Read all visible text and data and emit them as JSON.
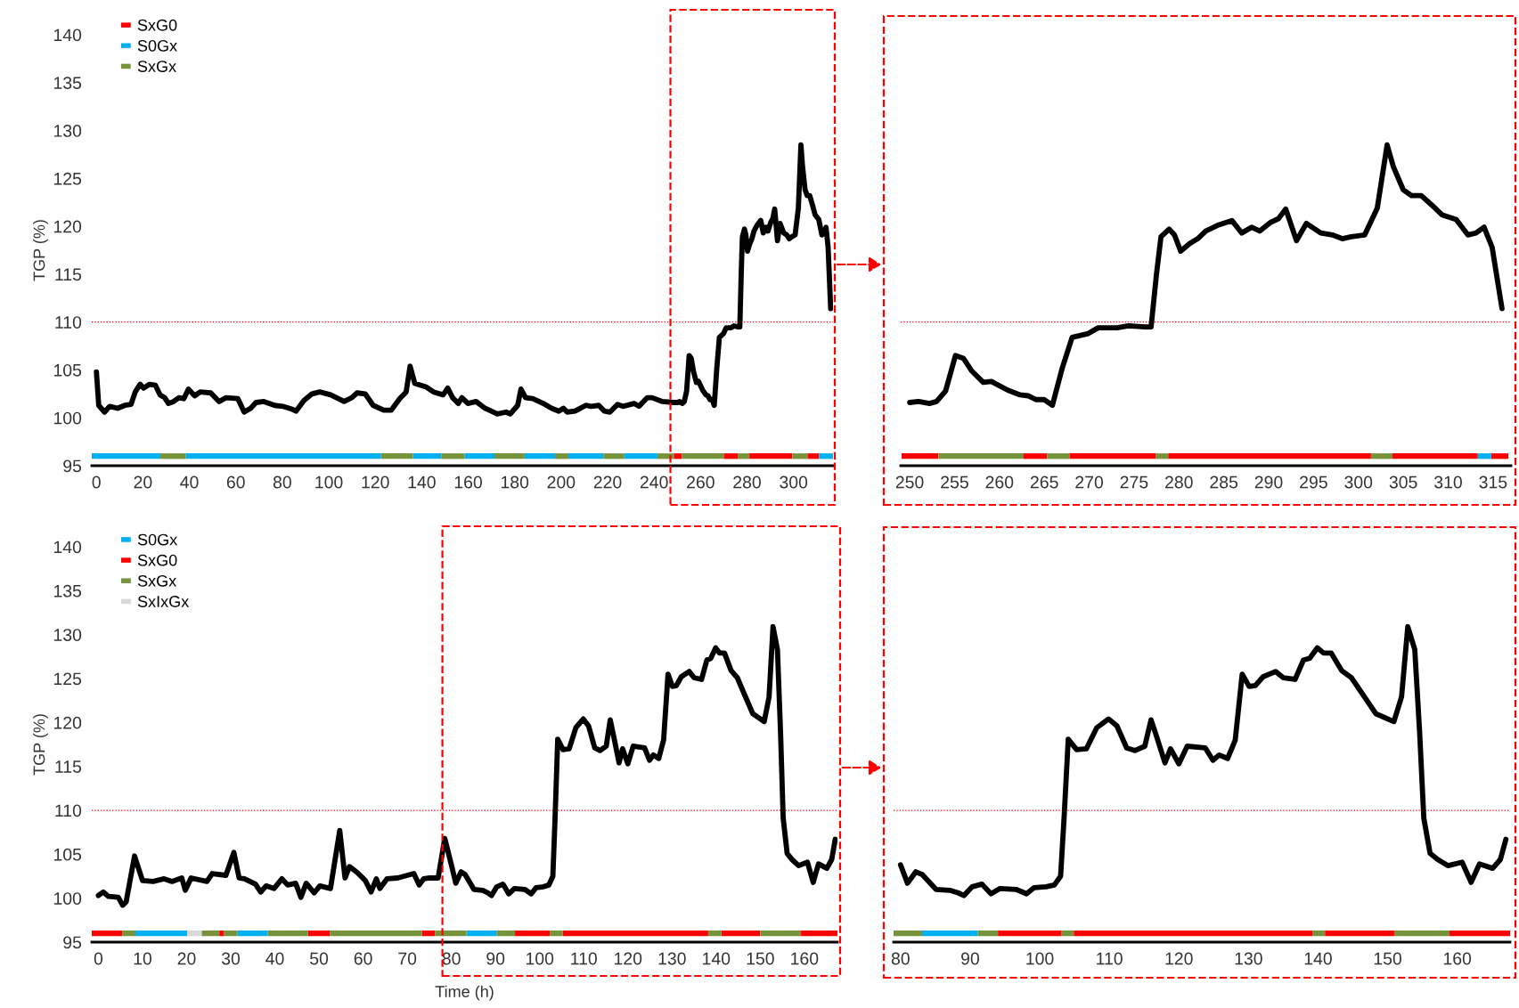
{
  "chart_data": [
    {
      "type": "line",
      "ylabel": "TGP (%)",
      "xlim": [
        -2,
        317
      ],
      "xticks": [
        0,
        20,
        40,
        60,
        80,
        100,
        120,
        140,
        160,
        180,
        200,
        220,
        240,
        260,
        280,
        300
      ],
      "ylim": [
        95,
        140
      ],
      "yticks": [
        95,
        100,
        105,
        110,
        115,
        120,
        125,
        130,
        135,
        140
      ],
      "legend": "top left",
      "ref_lines": [
        {
          "axis": "y",
          "value": 110,
          "color": "#ff0000",
          "line_style": "dotted"
        }
      ],
      "series": [
        {
          "name": "SxG0",
          "color": "#ff0000",
          "x": [
            248.5,
            252
          ],
          "values": [
            96,
            96
          ]
        },
        {
          "color": "#ff0000",
          "x": [
            270,
            276
          ],
          "values": [
            96,
            96
          ]
        },
        {
          "color": "#ff0000",
          "x": [
            281,
            299.5
          ],
          "values": [
            96,
            96
          ]
        },
        {
          "color": "#ff0000",
          "x": [
            306,
            311
          ],
          "values": [
            96,
            96
          ]
        },
        {
          "name": "S0Gx",
          "color": "#00b0f0",
          "x": [
            -2,
            27.5
          ],
          "values": [
            96,
            96
          ]
        },
        {
          "color": "#00b0f0",
          "x": [
            38.5,
            122.5
          ],
          "values": [
            96,
            96
          ]
        },
        {
          "color": "#00b0f0",
          "x": [
            136.2,
            148.4
          ],
          "values": [
            96,
            96
          ]
        },
        {
          "color": "#00b0f0",
          "x": [
            158.5,
            171.3
          ],
          "values": [
            96,
            96
          ]
        },
        {
          "color": "#00b0f0",
          "x": [
            184.3,
            197.4
          ],
          "values": [
            96,
            96
          ]
        },
        {
          "color": "#00b0f0",
          "x": [
            203.1,
            218.2
          ],
          "values": [
            96,
            96
          ]
        },
        {
          "color": "#00b0f0",
          "x": [
            227.2,
            241.4
          ],
          "values": [
            96,
            96
          ]
        },
        {
          "color": "#00b0f0",
          "x": [
            311,
            317
          ],
          "values": [
            96,
            96
          ]
        },
        {
          "name": "SxGx",
          "color": "#77933c",
          "x": [
            27.5,
            38.5
          ],
          "values": [
            96,
            96
          ]
        },
        {
          "color": "#77933c",
          "x": [
            122.5,
            136.2
          ],
          "values": [
            96,
            96
          ]
        },
        {
          "color": "#77933c",
          "x": [
            148.4,
            158.5
          ],
          "values": [
            96,
            96
          ]
        },
        {
          "color": "#77933c",
          "x": [
            171.3,
            184.3
          ],
          "values": [
            96,
            96
          ]
        },
        {
          "color": "#77933c",
          "x": [
            197.4,
            203.1
          ],
          "values": [
            96,
            96
          ]
        },
        {
          "color": "#77933c",
          "x": [
            218.2,
            227.2
          ],
          "values": [
            96,
            96
          ]
        },
        {
          "color": "#77933c",
          "x": [
            241.4,
            248.5
          ],
          "values": [
            96,
            96
          ]
        },
        {
          "color": "#77933c",
          "x": [
            252,
            270
          ],
          "values": [
            96,
            96
          ]
        },
        {
          "color": "#77933c",
          "x": [
            276,
            281
          ],
          "values": [
            96,
            96
          ]
        },
        {
          "color": "#77933c",
          "x": [
            299.5,
            306
          ],
          "values": [
            96,
            96
          ]
        },
        {
          "color": "#000000",
          "x": [
            0,
            1,
            3.5,
            5.7,
            9.1,
            12.2,
            14.9,
            16.7,
            18.8,
            20.3,
            22.9,
            25.4,
            27.4,
            29.4,
            31,
            33.2,
            35.5,
            37.6,
            39.6,
            42.3,
            44.7,
            49.2,
            52.8,
            55.8,
            60.9,
            63.6,
            66.4,
            68.7,
            72.1,
            76.7,
            80.2,
            84.2,
            85.9,
            89.3,
            92.8,
            96.1,
            100.8,
            106.6,
            109.9,
            112.2,
            115.7,
            119.1,
            123.7,
            126.9,
            130.5,
            133.3,
            135,
            137,
            142.1,
            145.1,
            149.2,
            151.2,
            153.3,
            155.7,
            157.3,
            159.9,
            163.4,
            167.2,
            169.9,
            172.5,
            176.3,
            178.1,
            181.3,
            182.7,
            184.7,
            187.8,
            192.3,
            195.9,
            199,
            201,
            202.6,
            206,
            210.6,
            212.9,
            216.2,
            218.6,
            221,
            224.3,
            226.6,
            231.4,
            233.5,
            237,
            239.2,
            243.6,
            248.5,
            250,
            251,
            252.2,
            253,
            254,
            255.1,
            256,
            256.9,
            258.2,
            259.1,
            260.9,
            262.3,
            263.2,
            264.1,
            265,
            265.9,
            267,
            268.1,
            269.9,
            271,
            273.1,
            274.4,
            276.2,
            276.9,
            277.5,
            278,
            278.9,
            279.5,
            280.2,
            281.2,
            282.1,
            283,
            284.3,
            285.9,
            287,
            288.1,
            289,
            290.2,
            291.1,
            291.9,
            293.1,
            294.2,
            295.8,
            297.1,
            298.2,
            299.2,
            300.7,
            302.1,
            303.2,
            303.9,
            305,
            305.9,
            307,
            308.2,
            309.3,
            310.9,
            312.2,
            313.1,
            314,
            314.9,
            316
          ],
          "values": [
            104.8,
            101.3,
            100.6,
            101.2,
            101,
            101.3,
            101.4,
            102.7,
            103.5,
            103.1,
            103.5,
            103.4,
            102.4,
            102.1,
            101.5,
            101.7,
            102.1,
            102,
            103,
            102.3,
            102.7,
            102.6,
            101.7,
            102.1,
            102,
            100.6,
            101,
            101.6,
            101.7,
            101.3,
            101.2,
            100.9,
            100.7,
            101.8,
            102.5,
            102.7,
            102.4,
            101.7,
            102.1,
            102.6,
            102.5,
            101.3,
            100.8,
            100.8,
            102,
            102.7,
            105.4,
            103.6,
            103.2,
            102.7,
            102.4,
            103.1,
            102.1,
            101.5,
            102.1,
            101.5,
            101.7,
            101,
            100.7,
            100.4,
            100.6,
            100.4,
            101.3,
            103,
            102.1,
            102,
            101.5,
            101,
            100.7,
            101,
            100.6,
            100.7,
            101.3,
            101.2,
            101.3,
            100.7,
            100.6,
            101.4,
            101.2,
            101.5,
            101.2,
            102.1,
            102.1,
            101.7,
            101.6,
            101.6,
            101.7,
            101.5,
            101.7,
            102.8,
            106.5,
            106.2,
            104.9,
            103.7,
            103.8,
            102.9,
            102.4,
            102.3,
            101.9,
            101.9,
            101.3,
            105.2,
            108.4,
            108.8,
            109.4,
            109.4,
            109.6,
            109.5,
            109.5,
            115,
            118.9,
            119.7,
            119.1,
            117.4,
            118.2,
            118.7,
            119.5,
            120.1,
            120.6,
            119.3,
            119.9,
            119.5,
            120.4,
            120.8,
            121.8,
            118.5,
            120.3,
            119.3,
            119.1,
            118.7,
            118.9,
            119.1,
            121.9,
            128.5,
            126.2,
            123.8,
            123.2,
            123.2,
            122.2,
            121.2,
            120.7,
            119.1,
            119.3,
            119.9,
            117.8,
            111.4
          ]
        }
      ]
    },
    {
      "type": "line",
      "xlim": [
        249,
        317
      ],
      "xticks": [
        250,
        255,
        260,
        265,
        270,
        275,
        280,
        285,
        290,
        295,
        300,
        305,
        310,
        315
      ],
      "ylim": [
        95,
        140
      ],
      "yticks": [
        95,
        100,
        105,
        110,
        115,
        120,
        125,
        130,
        135,
        140
      ],
      "tick_labels": "x",
      "ref_lines": [
        {
          "axis": "y",
          "value": 110,
          "color": "#ff0000",
          "line_style": "dotted"
        }
      ],
      "series": [
        {
          "color": "#ff0000",
          "x": [
            249.1,
            253.2
          ],
          "values": [
            96,
            96
          ]
        },
        {
          "color": "#ff0000",
          "x": [
            262.7,
            265.3
          ],
          "values": [
            96,
            96
          ]
        },
        {
          "color": "#ff0000",
          "x": [
            267.8,
            277.4
          ],
          "values": [
            96,
            96
          ]
        },
        {
          "color": "#ff0000",
          "x": [
            278.8,
            301.4
          ],
          "values": [
            96,
            96
          ]
        },
        {
          "color": "#ff0000",
          "x": [
            303.8,
            313.3
          ],
          "values": [
            96,
            96
          ]
        },
        {
          "color": "#ff0000",
          "x": [
            314.8,
            316.7
          ],
          "values": [
            96,
            96
          ]
        },
        {
          "color": "#77933c",
          "x": [
            253.2,
            262.7
          ],
          "values": [
            96,
            96
          ]
        },
        {
          "color": "#77933c",
          "x": [
            265.3,
            267.8
          ],
          "values": [
            96,
            96
          ]
        },
        {
          "color": "#77933c",
          "x": [
            277.4,
            278.8
          ],
          "values": [
            96,
            96
          ]
        },
        {
          "color": "#77933c",
          "x": [
            301.4,
            303.8
          ],
          "values": [
            96,
            96
          ]
        },
        {
          "color": "#00b0f0",
          "x": [
            313.3,
            314.8
          ],
          "values": [
            96,
            96
          ]
        },
        {
          "color": "#000000",
          "x": [
            250,
            251,
            252.2,
            253,
            254,
            255.1,
            256,
            256.9,
            258.2,
            259.1,
            260.9,
            262.3,
            263.2,
            264.1,
            265,
            265.9,
            267,
            268.1,
            269.9,
            271,
            273.1,
            274.4,
            276.2,
            276.9,
            277.5,
            278,
            278.9,
            279.5,
            280.2,
            281.2,
            282.1,
            283,
            284.3,
            285.9,
            287,
            288.1,
            289,
            290.2,
            291.1,
            291.9,
            293.1,
            294.2,
            295.8,
            297.1,
            298.2,
            299.2,
            300.7,
            302.1,
            303.2,
            303.9,
            305,
            305.9,
            307,
            308.2,
            309.3,
            310.9,
            312.2,
            313.1,
            314,
            314.9,
            316
          ],
          "values": [
            101.6,
            101.7,
            101.5,
            101.7,
            102.8,
            106.5,
            106.2,
            104.9,
            103.7,
            103.8,
            102.9,
            102.4,
            102.3,
            101.9,
            101.9,
            101.3,
            105.2,
            108.4,
            108.8,
            109.4,
            109.4,
            109.6,
            109.5,
            109.5,
            115,
            118.9,
            119.7,
            119.1,
            117.4,
            118.2,
            118.7,
            119.5,
            120.1,
            120.6,
            119.3,
            119.9,
            119.5,
            120.4,
            120.8,
            121.8,
            118.5,
            120.3,
            119.3,
            119.1,
            118.7,
            118.9,
            119.1,
            121.9,
            128.5,
            126.2,
            123.8,
            123.2,
            123.2,
            122.2,
            121.2,
            120.7,
            119.1,
            119.3,
            119.9,
            117.8,
            111.4
          ]
        }
      ]
    },
    {
      "type": "line",
      "ylabel": "TGP (%)",
      "xlabel": "Time (h)",
      "xlim": [
        -1.5,
        167.5
      ],
      "xticks": [
        0,
        10,
        20,
        30,
        40,
        50,
        60,
        70,
        80,
        90,
        100,
        110,
        120,
        130,
        140,
        150,
        160
      ],
      "ylim": [
        95,
        140
      ],
      "yticks": [
        95,
        100,
        105,
        110,
        115,
        120,
        125,
        130,
        135,
        140
      ],
      "legend": "top left",
      "ref_lines": [
        {
          "axis": "y",
          "value": 110,
          "color": "#ff0000",
          "line_style": "dotted"
        }
      ],
      "series": [
        {
          "name": "S0Gx",
          "color": "#00b0f0",
          "x": [
            8.4,
            20.1
          ],
          "values": [
            96,
            96
          ]
        },
        {
          "color": "#00b0f0",
          "x": [
            31.5,
            38.4
          ],
          "values": [
            96,
            96
          ]
        },
        {
          "color": "#00b0f0",
          "x": [
            83.4,
            90.3
          ],
          "values": [
            96,
            96
          ]
        },
        {
          "name": "SxG0",
          "color": "#ff0000",
          "x": [
            -1.5,
            5.4
          ],
          "values": [
            96,
            96
          ]
        },
        {
          "color": "#ff0000",
          "x": [
            27.4,
            28.5
          ],
          "values": [
            96,
            96
          ]
        },
        {
          "color": "#ff0000",
          "x": [
            47.5,
            52.5
          ],
          "values": [
            96,
            96
          ]
        },
        {
          "color": "#ff0000",
          "x": [
            73.3,
            76.3
          ],
          "values": [
            96,
            96
          ]
        },
        {
          "color": "#ff0000",
          "x": [
            94.4,
            102.3
          ],
          "values": [
            96,
            96
          ]
        },
        {
          "color": "#ff0000",
          "x": [
            105.2,
            138.2
          ],
          "values": [
            96,
            96
          ]
        },
        {
          "color": "#ff0000",
          "x": [
            141.2,
            150
          ],
          "values": [
            96,
            96
          ]
        },
        {
          "color": "#ff0000",
          "x": [
            159.1,
            167.5
          ],
          "values": [
            96,
            96
          ]
        },
        {
          "name": "SxGx",
          "color": "#77933c",
          "x": [
            5.4,
            8.4
          ],
          "values": [
            96,
            96
          ]
        },
        {
          "color": "#77933c",
          "x": [
            23.4,
            27.4
          ],
          "values": [
            96,
            96
          ]
        },
        {
          "color": "#77933c",
          "x": [
            28.5,
            31.5
          ],
          "values": [
            96,
            96
          ]
        },
        {
          "color": "#77933c",
          "x": [
            38.4,
            47.5
          ],
          "values": [
            96,
            96
          ]
        },
        {
          "color": "#77933c",
          "x": [
            52.5,
            73.3
          ],
          "values": [
            96,
            96
          ]
        },
        {
          "color": "#77933c",
          "x": [
            76.3,
            83.4
          ],
          "values": [
            96,
            96
          ]
        },
        {
          "color": "#77933c",
          "x": [
            90.3,
            94.4
          ],
          "values": [
            96,
            96
          ]
        },
        {
          "color": "#77933c",
          "x": [
            102.3,
            105.2
          ],
          "values": [
            96,
            96
          ]
        },
        {
          "color": "#77933c",
          "x": [
            138.2,
            141.2
          ],
          "values": [
            96,
            96
          ]
        },
        {
          "color": "#77933c",
          "x": [
            150,
            159.1
          ],
          "values": [
            96,
            96
          ]
        },
        {
          "name": "SxIxGx",
          "color": "#d9d9d9",
          "x": [
            20.1,
            23.4
          ],
          "values": [
            96,
            96
          ]
        },
        {
          "color": "#000000",
          "x": [
            0,
            1.1,
            2.3,
            4.5,
            5.5,
            6.3,
            8.2,
            10,
            12.4,
            14.9,
            16.7,
            18.9,
            19.7,
            21,
            24.6,
            25.8,
            28.9,
            30.7,
            31.9,
            33.1,
            35.6,
            36.8,
            38,
            39.8,
            41.6,
            42.9,
            44.7,
            45.9,
            47.1,
            48.9,
            50.2,
            52.6,
            54.7,
            55.9,
            56.9,
            58.7,
            60.5,
            61.8,
            63,
            63.8,
            65.4,
            67.8,
            71.5,
            72.7,
            73.7,
            75.1,
            77,
            78.5,
            80,
            81,
            82.2,
            83.1,
            85.1,
            87.1,
            88.3,
            89.1,
            90.3,
            91.7,
            93,
            94.3,
            96.6,
            98.1,
            99.2,
            100.9,
            102.1,
            103,
            103.5,
            104.1,
            105.3,
            106.7,
            108.2,
            109.9,
            111.1,
            112.5,
            113.7,
            115.1,
            116,
            116.8,
            118,
            118.8,
            120,
            121.2,
            123.8,
            124.9,
            125.8,
            127,
            128.1,
            129.1,
            130.1,
            131,
            132.1,
            133.9,
            135,
            136.7,
            137.9,
            138.8,
            139.9,
            140.8,
            141.9,
            143.4,
            144.8,
            146.5,
            148.3,
            150.9,
            152,
            152.9,
            153.9,
            154.6,
            155.2,
            156.1,
            157.2,
            158.7,
            160.7,
            162,
            163.2,
            165.1,
            166.2,
            167
          ],
          "values": [
            100.3,
            100.7,
            100.2,
            100.1,
            99.2,
            99.6,
            104.8,
            102,
            101.9,
            102.2,
            101.9,
            102.3,
            100.9,
            102.3,
            101.9,
            102.8,
            102.6,
            105.2,
            102.3,
            102.2,
            101.6,
            100.7,
            101.4,
            101.1,
            102.2,
            101.5,
            101.7,
            100.1,
            101.7,
            100.6,
            101.4,
            101.1,
            107.7,
            102.3,
            103.6,
            102.9,
            102,
            100.7,
            102.2,
            101.1,
            102.2,
            102.3,
            102.8,
            101.5,
            102.2,
            102.3,
            102.3,
            106.8,
            103.8,
            101.7,
            103,
            102.7,
            101,
            100.9,
            100.6,
            100.3,
            101.3,
            101.6,
            100.5,
            101.1,
            101,
            100.5,
            101.2,
            101.3,
            101.5,
            102.5,
            109.1,
            118.1,
            116.9,
            117,
            119.4,
            120.4,
            119.6,
            117.1,
            116.8,
            117.3,
            120.3,
            118.4,
            115.4,
            117,
            115.3,
            117.3,
            117.1,
            115.7,
            116.3,
            115.9,
            118,
            125.5,
            124.1,
            124.2,
            125.2,
            125.8,
            125.1,
            124.9,
            127.1,
            127.3,
            128.5,
            127.9,
            127.9,
            125.9,
            125.1,
            123.1,
            121,
            120.1,
            122.9,
            130.9,
            128.3,
            118.9,
            109.1,
            105.1,
            104.4,
            103.7,
            104.1,
            101.8,
            103.9,
            103.4,
            104.4,
            106.7
          ]
        }
      ]
    },
    {
      "type": "line",
      "xlim": [
        79,
        167.6
      ],
      "xticks": [
        80,
        90,
        100,
        110,
        120,
        130,
        140,
        150,
        160
      ],
      "ylim": [
        95,
        140
      ],
      "yticks": [
        95,
        100,
        105,
        110,
        115,
        120,
        125,
        130,
        135,
        140
      ],
      "tick_labels": "x",
      "ref_lines": [
        {
          "axis": "y",
          "value": 110,
          "color": "#ff0000",
          "line_style": "dotted"
        }
      ],
      "series": [
        {
          "color": "#77933c",
          "x": [
            79,
            83.1
          ],
          "values": [
            96,
            96
          ]
        },
        {
          "color": "#77933c",
          "x": [
            91.1,
            94
          ],
          "values": [
            96,
            96
          ]
        },
        {
          "color": "#77933c",
          "x": [
            103.1,
            104.9
          ],
          "values": [
            96,
            96
          ]
        },
        {
          "color": "#77933c",
          "x": [
            139.2,
            141
          ],
          "values": [
            96,
            96
          ]
        },
        {
          "color": "#77933c",
          "x": [
            151,
            158.9
          ],
          "values": [
            96,
            96
          ]
        },
        {
          "color": "#00b0f0",
          "x": [
            83.1,
            91.1
          ],
          "values": [
            96,
            96
          ]
        },
        {
          "color": "#ff0000",
          "x": [
            94,
            103.1
          ],
          "values": [
            96,
            96
          ]
        },
        {
          "color": "#ff0000",
          "x": [
            104.9,
            139.2
          ],
          "values": [
            96,
            96
          ]
        },
        {
          "color": "#ff0000",
          "x": [
            141,
            151
          ],
          "values": [
            96,
            96
          ]
        },
        {
          "color": "#ff0000",
          "x": [
            158.9,
            167.6
          ],
          "values": [
            96,
            96
          ]
        },
        {
          "color": "#000000",
          "x": [
            80,
            81,
            82.2,
            83.1,
            85.1,
            87.1,
            88.3,
            89.1,
            90.3,
            91.7,
            93,
            94.3,
            96.6,
            98.1,
            99.2,
            100.9,
            102.1,
            103,
            103.5,
            104.1,
            105.3,
            106.7,
            108.2,
            109.9,
            111.1,
            112.5,
            113.7,
            115.1,
            116,
            116.8,
            118,
            118.8,
            120,
            121.2,
            123.8,
            124.9,
            125.8,
            127,
            128.1,
            129.1,
            130.1,
            131,
            132.1,
            133.9,
            135,
            136.7,
            137.9,
            138.8,
            139.9,
            140.8,
            141.9,
            143.4,
            144.8,
            146.5,
            148.3,
            150.9,
            152,
            152.9,
            153.9,
            154.6,
            155.2,
            156.1,
            157.2,
            158.7,
            160.7,
            162,
            163.2,
            165.1,
            166.2,
            167
          ],
          "values": [
            103.8,
            101.7,
            103,
            102.7,
            101,
            100.9,
            100.6,
            100.3,
            101.3,
            101.6,
            100.5,
            101.1,
            101,
            100.5,
            101.2,
            101.3,
            101.5,
            102.5,
            109.1,
            118.1,
            116.9,
            117,
            119.4,
            120.4,
            119.6,
            117.1,
            116.8,
            117.3,
            120.3,
            118.4,
            115.4,
            117,
            115.3,
            117.3,
            117.1,
            115.7,
            116.3,
            115.9,
            118,
            125.5,
            124.1,
            124.2,
            125.2,
            125.8,
            125.1,
            124.9,
            127.1,
            127.3,
            128.5,
            127.9,
            127.9,
            125.9,
            125.1,
            123.1,
            121,
            120.1,
            122.9,
            130.9,
            128.3,
            118.9,
            109.1,
            105.1,
            104.4,
            103.7,
            104.1,
            101.8,
            103.9,
            103.4,
            104.4,
            106.7
          ]
        }
      ]
    }
  ]
}
